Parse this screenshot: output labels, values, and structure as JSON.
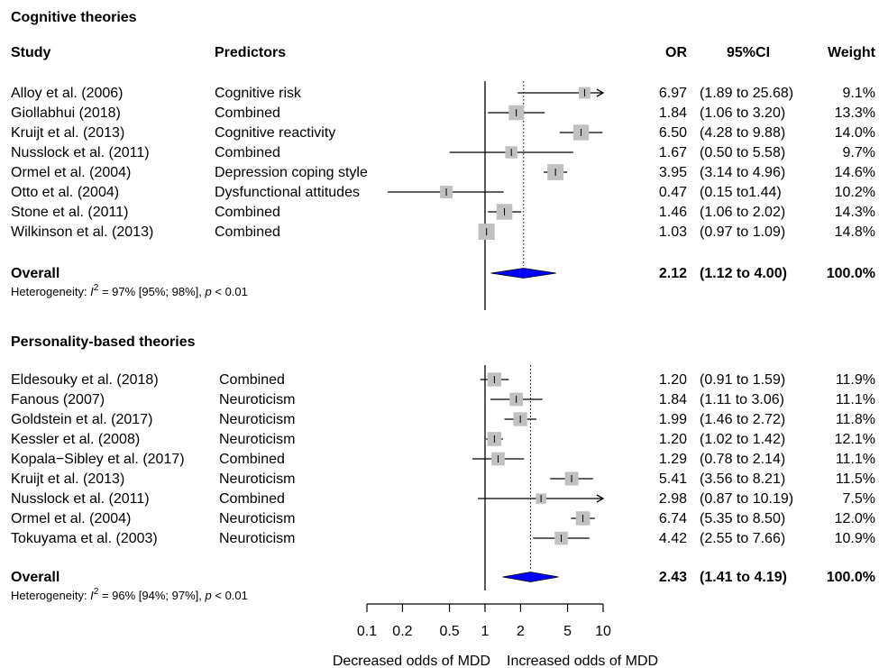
{
  "chart_data": {
    "type": "forest",
    "columns": {
      "study": "Study",
      "predictors": "Predictors",
      "or": "OR",
      "ci": "95%CI",
      "weight": "Weight"
    },
    "x_scale": "log",
    "xlim": [
      0.1,
      10
    ],
    "x_ticks": [
      "0.1",
      "0.2",
      "0.5",
      "1",
      "2",
      "5",
      "10"
    ],
    "x_tick_values": [
      0.1,
      0.2,
      0.5,
      1,
      2,
      5,
      10
    ],
    "xlabel_left": "Decreased odds of MDD",
    "xlabel_right": "Increased odds of MDD",
    "reference_line": 1,
    "groups": [
      {
        "title": "Cognitive theories",
        "studies": [
          {
            "study": "Alloy et al. (2006)",
            "predictor": "Cognitive risk",
            "or": 6.97,
            "lo": 1.89,
            "hi": 25.68,
            "or_text": "6.97",
            "ci_text": "(1.89 to 25.68)",
            "weight_text": "9.1%",
            "weight": 9.1
          },
          {
            "study": "Giollabhui (2018)",
            "predictor": "Combined",
            "or": 1.84,
            "lo": 1.06,
            "hi": 3.2,
            "or_text": "1.84",
            "ci_text": "(1.06 to 3.20)",
            "weight_text": "13.3%",
            "weight": 13.3
          },
          {
            "study": "Kruijt et al. (2013)",
            "predictor": "Cognitive reactivity",
            "or": 6.5,
            "lo": 4.28,
            "hi": 9.88,
            "or_text": "6.50",
            "ci_text": "(4.28 to 9.88)",
            "weight_text": "14.0%",
            "weight": 14.0
          },
          {
            "study": "Nusslock et al. (2011)",
            "predictor": "Combined",
            "or": 1.67,
            "lo": 0.5,
            "hi": 5.58,
            "or_text": "1.67",
            "ci_text": "(0.50 to 5.58)",
            "weight_text": "9.7%",
            "weight": 9.7
          },
          {
            "study": "Ormel et al. (2004)",
            "predictor": "Depression coping style",
            "or": 3.95,
            "lo": 3.14,
            "hi": 4.96,
            "or_text": "3.95",
            "ci_text": "(3.14 to 4.96)",
            "weight_text": "14.6%",
            "weight": 14.6
          },
          {
            "study": "Otto et al. (2004)",
            "predictor": "Dysfunctional attitudes",
            "or": 0.47,
            "lo": 0.15,
            "hi": 1.44,
            "or_text": "0.47",
            "ci_text": "(0.15 to1.44)",
            "weight_text": "10.2%",
            "weight": 10.2
          },
          {
            "study": "Stone et al. (2011)",
            "predictor": "Combined",
            "or": 1.46,
            "lo": 1.06,
            "hi": 2.02,
            "or_text": "1.46",
            "ci_text": "(1.06 to 2.02)",
            "weight_text": "14.3%",
            "weight": 14.3
          },
          {
            "study": "Wilkinson et al. (2013)",
            "predictor": "Combined",
            "or": 1.03,
            "lo": 0.97,
            "hi": 1.09,
            "or_text": "1.03",
            "ci_text": "(0.97 to 1.09)",
            "weight_text": "14.8%",
            "weight": 14.8
          }
        ],
        "overall": {
          "label": "Overall",
          "or": 2.12,
          "lo": 1.12,
          "hi": 4.0,
          "or_text": "2.12",
          "ci_text": "(1.12 to  4.00)",
          "weight_text": "100.0%"
        },
        "heterogeneity": {
          "prefix": "Heterogeneity: ",
          "i2_symbol": "I",
          "i2_exp": "2",
          "stats": " = 97% [95%; 98%], ",
          "p_symbol": "p",
          "p_value": " < 0.01"
        }
      },
      {
        "title": "Personality-based theories",
        "studies": [
          {
            "study": "Eldesouky et al. (2018)",
            "predictor": "Combined",
            "or": 1.2,
            "lo": 0.91,
            "hi": 1.59,
            "or_text": "1.20",
            "ci_text": "(0.91 to 1.59)",
            "weight_text": "11.9%",
            "weight": 11.9
          },
          {
            "study": "Fanous (2007)",
            "predictor": "Neuroticism",
            "or": 1.84,
            "lo": 1.11,
            "hi": 3.06,
            "or_text": "1.84",
            "ci_text": "(1.11 to 3.06)",
            "weight_text": "11.1%",
            "weight": 11.1
          },
          {
            "study": "Goldstein et al. (2017)",
            "predictor": "Neuroticism",
            "or": 1.99,
            "lo": 1.46,
            "hi": 2.72,
            "or_text": "1.99",
            "ci_text": "(1.46 to 2.72)",
            "weight_text": "11.8%",
            "weight": 11.8
          },
          {
            "study": "Kessler et al. (2008)",
            "predictor": "Neuroticism",
            "or": 1.2,
            "lo": 1.02,
            "hi": 1.42,
            "or_text": "1.20",
            "ci_text": "(1.02 to 1.42)",
            "weight_text": "12.1%",
            "weight": 12.1
          },
          {
            "study": "Kopala−Sibley et al. (2017)",
            "predictor": "Combined",
            "or": 1.29,
            "lo": 0.78,
            "hi": 2.14,
            "or_text": "1.29",
            "ci_text": "(0.78 to 2.14)",
            "weight_text": "11.1%",
            "weight": 11.1
          },
          {
            "study": "Kruijt et al. (2013)",
            "predictor": "Neuroticism",
            "or": 5.41,
            "lo": 3.56,
            "hi": 8.21,
            "or_text": "5.41",
            "ci_text": "(3.56 to 8.21)",
            "weight_text": "11.5%",
            "weight": 11.5
          },
          {
            "study": "Nusslock et al. (2011)",
            "predictor": "Combined",
            "or": 2.98,
            "lo": 0.87,
            "hi": 10.19,
            "or_text": "2.98",
            "ci_text": "(0.87 to 10.19)",
            "weight_text": "7.5%",
            "weight": 7.5
          },
          {
            "study": "Ormel et al. (2004)",
            "predictor": "Neuroticism",
            "or": 6.74,
            "lo": 5.35,
            "hi": 8.5,
            "or_text": "6.74",
            "ci_text": "(5.35 to 8.50)",
            "weight_text": "12.0%",
            "weight": 12.0
          },
          {
            "study": "Tokuyama et al. (2003)",
            "predictor": "Neuroticism",
            "or": 4.42,
            "lo": 2.55,
            "hi": 7.66,
            "or_text": "4.42",
            "ci_text": "(2.55 to 7.66)",
            "weight_text": "10.9%",
            "weight": 10.9
          }
        ],
        "overall": {
          "label": "Overall",
          "or": 2.43,
          "lo": 1.41,
          "hi": 4.19,
          "or_text": "2.43",
          "ci_text": "(1.41 to  4.19)",
          "weight_text": "100.0%"
        },
        "heterogeneity": {
          "prefix": "Heterogeneity: ",
          "i2_symbol": "I",
          "i2_exp": "2",
          "stats": " = 96% [94%; 97%], ",
          "p_symbol": "p",
          "p_value": " < 0.01"
        }
      }
    ],
    "colors": {
      "box": "#c0c0c0",
      "diamond": "#0000ff",
      "line": "#000000"
    }
  }
}
